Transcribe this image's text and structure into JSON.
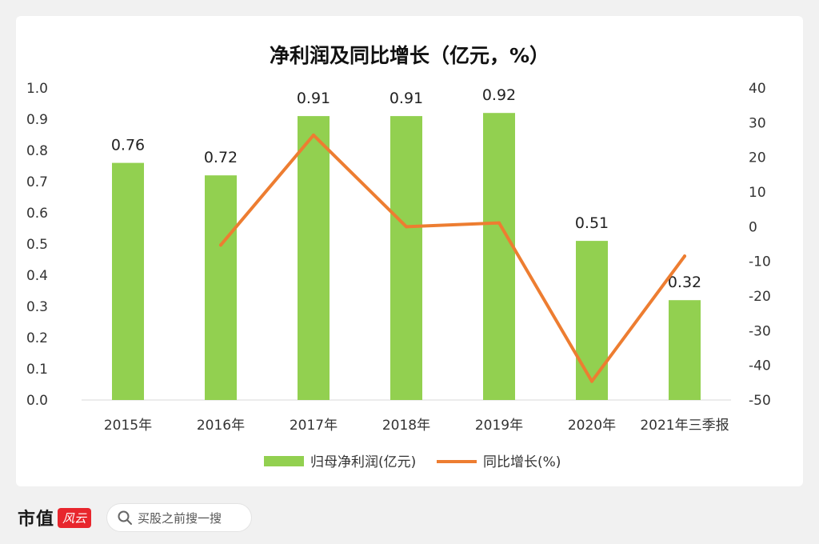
{
  "brand": {
    "name": "市值",
    "mark": "风云"
  },
  "search": {
    "placeholder": "买股之前搜一搜"
  },
  "chart_data": {
    "type": "bar",
    "title": "净利润及同比增长（亿元，%）",
    "categories": [
      "2015年",
      "2016年",
      "2017年",
      "2018年",
      "2019年",
      "2020年",
      "2021年三季报"
    ],
    "series": [
      {
        "name": "归母净利润(亿元)",
        "type": "bar",
        "axis": "left",
        "color": "#92d050",
        "values": [
          0.76,
          0.72,
          0.91,
          0.91,
          0.92,
          0.51,
          0.32
        ],
        "labels": [
          "0.76",
          "0.72",
          "0.91",
          "0.91",
          "0.92",
          "0.51",
          "0.32"
        ]
      },
      {
        "name": "同比增长(%)",
        "type": "line",
        "axis": "right",
        "color": "#ed7d31",
        "values": [
          null,
          -5.3,
          26.4,
          0.0,
          1.1,
          -44.6,
          -8.5
        ]
      }
    ],
    "y_left": {
      "min": 0,
      "max": 1.0,
      "ticks": [
        "0.0",
        "0.1",
        "0.2",
        "0.3",
        "0.4",
        "0.5",
        "0.6",
        "0.7",
        "0.8",
        "0.9",
        "1.0"
      ]
    },
    "y_right": {
      "min": -50,
      "max": 40,
      "ticks": [
        "-50",
        "-40",
        "-30",
        "-20",
        "-10",
        "0",
        "10",
        "20",
        "30",
        "40"
      ]
    },
    "legend_position": "bottom",
    "grid": false
  }
}
